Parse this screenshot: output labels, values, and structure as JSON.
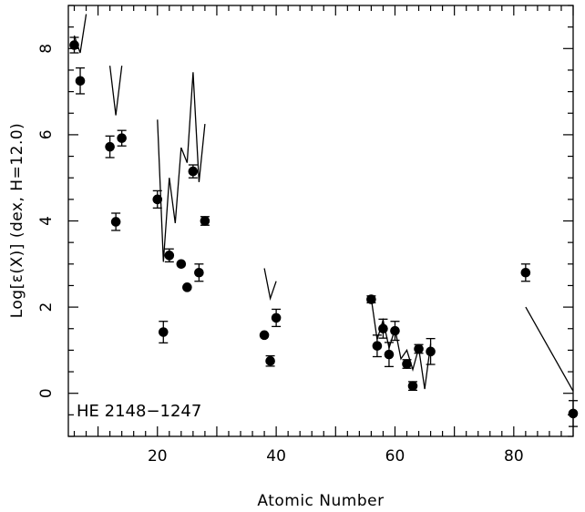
{
  "chart_data": {
    "type": "scatter",
    "title": "",
    "xlabel": "Atomic Number",
    "ylabel": "Log[ε(X)] (dex, H=12.0)",
    "annotation": "HE 2148−1247",
    "xlim": [
      5,
      90
    ],
    "ylim": [
      -1,
      9
    ],
    "x_ticks": [
      20,
      40,
      60,
      80
    ],
    "y_ticks": [
      0,
      2,
      4,
      6,
      8
    ],
    "grid": false,
    "points": [
      {
        "x": 6,
        "y": 8.08,
        "err": 0.18
      },
      {
        "x": 7,
        "y": 7.25,
        "err": 0.3
      },
      {
        "x": 12,
        "y": 5.72,
        "err": 0.25
      },
      {
        "x": 13,
        "y": 3.98,
        "err": 0.2
      },
      {
        "x": 14,
        "y": 5.92,
        "err": 0.18
      },
      {
        "x": 20,
        "y": 4.5,
        "err": 0.2
      },
      {
        "x": 21,
        "y": 1.42,
        "err": 0.25
      },
      {
        "x": 22,
        "y": 3.2,
        "err": 0.15
      },
      {
        "x": 24,
        "y": 3.0,
        "err": 0.0
      },
      {
        "x": 25,
        "y": 2.46,
        "err": 0.0
      },
      {
        "x": 26,
        "y": 5.15,
        "err": 0.15
      },
      {
        "x": 27,
        "y": 2.8,
        "err": 0.2
      },
      {
        "x": 28,
        "y": 4.0,
        "err": 0.1
      },
      {
        "x": 38,
        "y": 1.35,
        "err": 0.0
      },
      {
        "x": 39,
        "y": 0.75,
        "err": 0.12
      },
      {
        "x": 40,
        "y": 1.75,
        "err": 0.2
      },
      {
        "x": 56,
        "y": 2.18,
        "err": 0.08
      },
      {
        "x": 57,
        "y": 1.1,
        "err": 0.25
      },
      {
        "x": 58,
        "y": 1.5,
        "err": 0.22
      },
      {
        "x": 59,
        "y": 0.9,
        "err": 0.28
      },
      {
        "x": 60,
        "y": 1.45,
        "err": 0.22
      },
      {
        "x": 62,
        "y": 0.68,
        "err": 0.1
      },
      {
        "x": 63,
        "y": 0.17,
        "err": 0.1
      },
      {
        "x": 64,
        "y": 1.03,
        "err": 0.1
      },
      {
        "x": 66,
        "y": 0.97,
        "err": 0.3
      },
      {
        "x": 82,
        "y": 2.8,
        "err": 0.2
      },
      {
        "x": 90,
        "y": -0.47,
        "err": 0.3
      }
    ],
    "model_lines": [
      [
        [
          6,
          8.3
        ],
        [
          7,
          7.9
        ],
        [
          8,
          8.8
        ]
      ],
      [
        [
          12,
          7.6
        ],
        [
          13,
          6.45
        ],
        [
          14,
          7.6
        ]
      ],
      [
        [
          20,
          6.35
        ],
        [
          21,
          3.05
        ],
        [
          22,
          5.0
        ],
        [
          23,
          3.95
        ],
        [
          24,
          5.7
        ],
        [
          25,
          5.35
        ],
        [
          26,
          7.45
        ],
        [
          27,
          4.9
        ],
        [
          28,
          6.25
        ]
      ],
      [
        [
          38,
          2.9
        ],
        [
          39,
          2.2
        ],
        [
          40,
          2.6
        ]
      ],
      [
        [
          56,
          2.2
        ],
        [
          57,
          1.25
        ],
        [
          58,
          1.7
        ],
        [
          59,
          1.05
        ],
        [
          60,
          1.5
        ],
        [
          61,
          0.8
        ],
        [
          62,
          1.0
        ],
        [
          63,
          0.55
        ],
        [
          64,
          1.05
        ],
        [
          65,
          0.1
        ],
        [
          66,
          1.15
        ]
      ],
      [
        [
          82,
          2.0
        ],
        [
          90,
          0.05
        ]
      ]
    ]
  }
}
